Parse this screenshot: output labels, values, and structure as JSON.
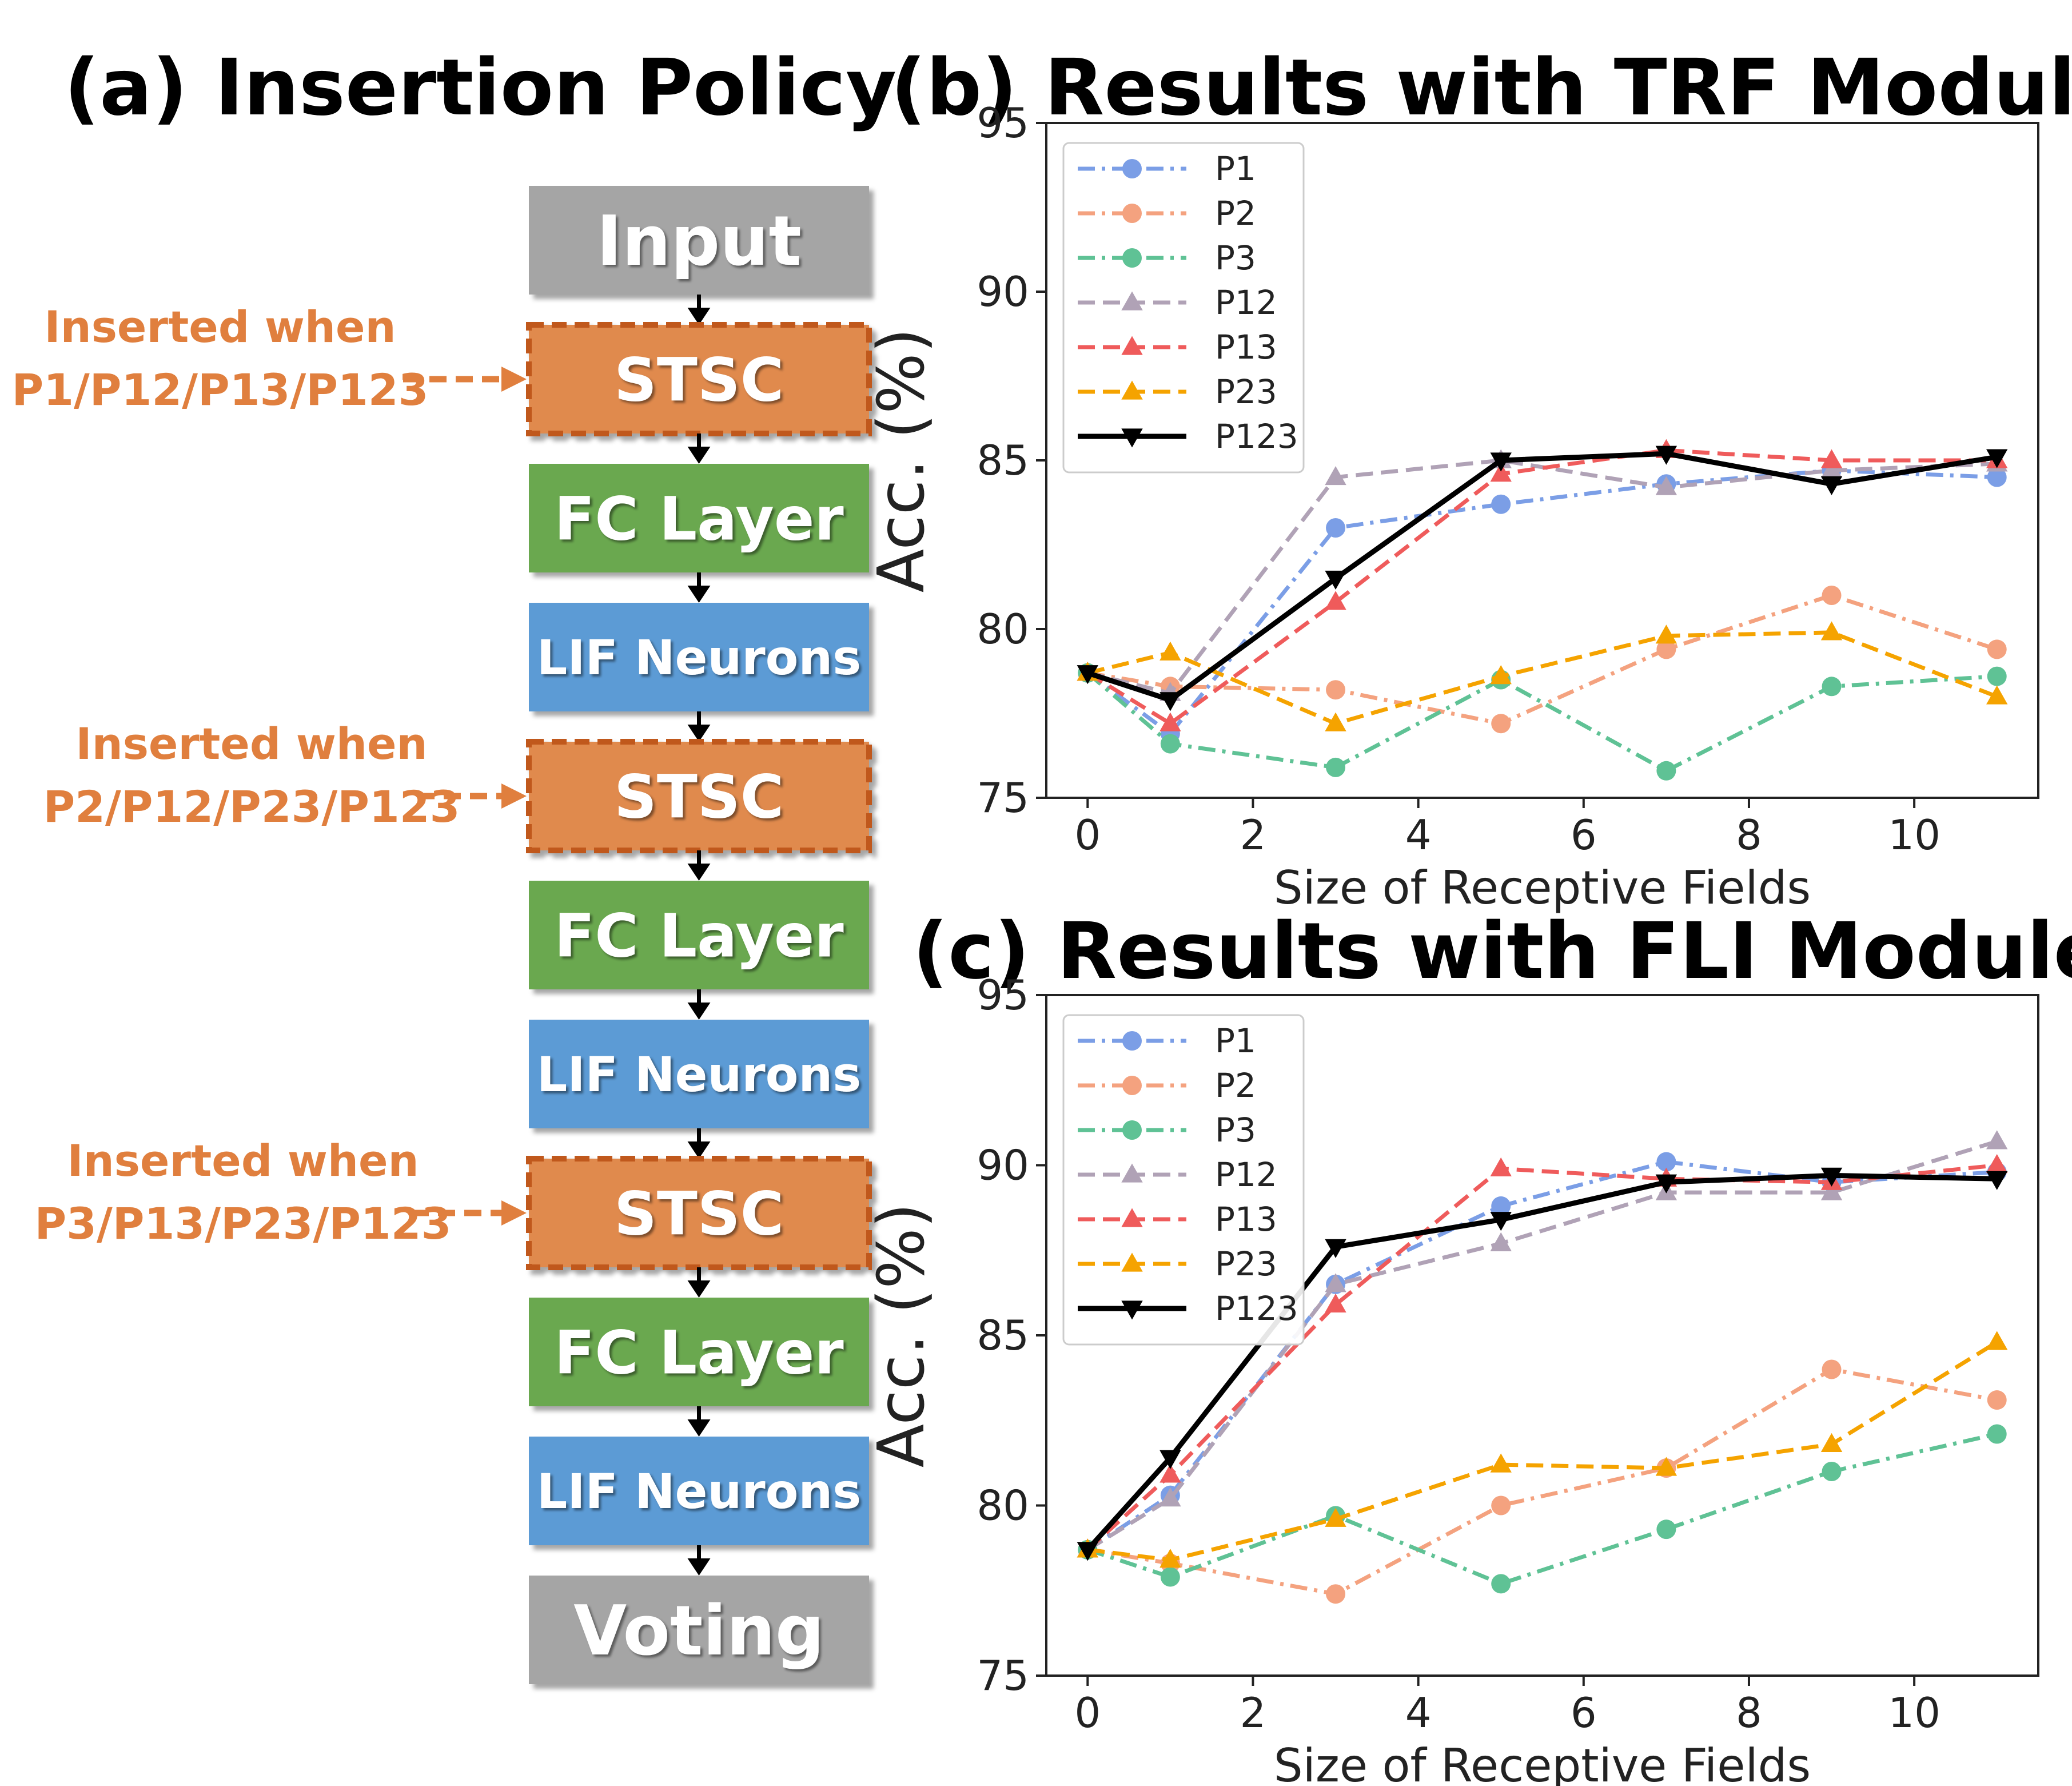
{
  "titles": {
    "a": "(a) Insertion Policy",
    "b": "(b) Results with TRF Module",
    "c": "(c) Results with FLI Module"
  },
  "flow": {
    "blocks": [
      {
        "label": "Input",
        "kind": "gray"
      },
      {
        "label": "STSC",
        "kind": "orange"
      },
      {
        "label": "FC Layer",
        "kind": "green"
      },
      {
        "label": "LIF Neurons",
        "kind": "blue"
      },
      {
        "label": "STSC",
        "kind": "orange"
      },
      {
        "label": "FC Layer",
        "kind": "green"
      },
      {
        "label": "LIF Neurons",
        "kind": "blue"
      },
      {
        "label": "STSC",
        "kind": "orange"
      },
      {
        "label": "FC Layer",
        "kind": "green"
      },
      {
        "label": "LIF Neurons",
        "kind": "blue"
      },
      {
        "label": "Voting",
        "kind": "gray"
      }
    ],
    "notes": [
      {
        "line1": "Inserted when",
        "line2": "P1/P12/P13/P123"
      },
      {
        "line1": "Inserted when",
        "line2": "P2/P12/P23/P123"
      },
      {
        "line1": "Inserted when",
        "line2": "P3/P13/P23/P123"
      }
    ],
    "colors": {
      "gray": "#a5a5a5",
      "orange": "#e08a4e",
      "orange_border": "#c0591c",
      "green": "#6aa84f",
      "blue": "#5b9bd5",
      "note": "#e07f3e"
    }
  },
  "chart_data": [
    {
      "type": "line",
      "title": "(b) Results with TRF Module",
      "xlabel": "Size of Receptive Fields",
      "ylabel": "Acc. (%)",
      "xlim": [
        -0.5,
        11.5
      ],
      "ylim": [
        75,
        95
      ],
      "xticks": [
        0,
        2,
        4,
        6,
        8,
        10
      ],
      "yticks": [
        75,
        80,
        85,
        90,
        95
      ],
      "x": [
        0,
        1,
        3,
        5,
        7,
        9,
        11
      ],
      "series": [
        {
          "name": "P1",
          "color": "#7b9ee6",
          "dash": "dashdot",
          "marker": "circle",
          "values": [
            78.7,
            76.9,
            83.0,
            83.7,
            84.3,
            84.7,
            84.5
          ]
        },
        {
          "name": "P2",
          "color": "#f4a27f",
          "dash": "dashdot",
          "marker": "circle",
          "values": [
            78.7,
            78.3,
            78.2,
            77.2,
            79.4,
            81.0,
            79.4
          ]
        },
        {
          "name": "P3",
          "color": "#5fc295",
          "dash": "dashdot",
          "marker": "circle",
          "values": [
            78.7,
            76.6,
            75.9,
            78.5,
            75.8,
            78.3,
            78.6
          ]
        },
        {
          "name": "P12",
          "color": "#b0a2b6",
          "dash": "dashed",
          "marker": "triangle-up",
          "values": [
            78.7,
            78.1,
            84.5,
            85.0,
            84.2,
            84.7,
            84.9
          ]
        },
        {
          "name": "P13",
          "color": "#ef5b5b",
          "dash": "dashed",
          "marker": "triangle-up",
          "values": [
            78.7,
            77.2,
            80.8,
            84.6,
            85.3,
            85.0,
            85.0
          ]
        },
        {
          "name": "P23",
          "color": "#f5a300",
          "dash": "dashed",
          "marker": "triangle-up",
          "values": [
            78.7,
            79.3,
            77.2,
            78.6,
            79.8,
            79.9,
            78.0
          ]
        },
        {
          "name": "P123",
          "color": "#000000",
          "dash": "solid",
          "marker": "triangle-down",
          "values": [
            78.7,
            77.9,
            81.5,
            85.0,
            85.2,
            84.3,
            85.1
          ]
        }
      ]
    },
    {
      "type": "line",
      "title": "(c) Results with FLI Module",
      "xlabel": "Size of Receptive Fields",
      "ylabel": "Acc. (%)",
      "xlim": [
        -0.5,
        11.5
      ],
      "ylim": [
        75,
        95
      ],
      "xticks": [
        0,
        2,
        4,
        6,
        8,
        10
      ],
      "yticks": [
        75,
        80,
        85,
        90,
        95
      ],
      "x": [
        0,
        1,
        3,
        5,
        7,
        9,
        11
      ],
      "series": [
        {
          "name": "P1",
          "color": "#7b9ee6",
          "dash": "dashdot",
          "marker": "circle",
          "values": [
            78.7,
            80.3,
            86.5,
            88.8,
            90.1,
            89.5,
            89.8
          ]
        },
        {
          "name": "P2",
          "color": "#f4a27f",
          "dash": "dashdot",
          "marker": "circle",
          "values": [
            78.7,
            78.3,
            77.4,
            80.0,
            81.1,
            84.0,
            83.1
          ]
        },
        {
          "name": "P3",
          "color": "#5fc295",
          "dash": "dashdot",
          "marker": "circle",
          "values": [
            78.7,
            77.9,
            79.7,
            77.7,
            79.3,
            81.0,
            82.1
          ]
        },
        {
          "name": "P12",
          "color": "#b0a2b6",
          "dash": "dashed",
          "marker": "triangle-up",
          "values": [
            78.7,
            80.2,
            86.5,
            87.7,
            89.2,
            89.2,
            90.7
          ]
        },
        {
          "name": "P13",
          "color": "#ef5b5b",
          "dash": "dashed",
          "marker": "triangle-up",
          "values": [
            78.7,
            80.9,
            85.9,
            89.9,
            89.6,
            89.5,
            90.0
          ]
        },
        {
          "name": "P23",
          "color": "#f5a300",
          "dash": "dashed",
          "marker": "triangle-up",
          "values": [
            78.7,
            78.4,
            79.6,
            81.2,
            81.1,
            81.8,
            84.8
          ]
        },
        {
          "name": "P123",
          "color": "#000000",
          "dash": "solid",
          "marker": "triangle-down",
          "values": [
            78.7,
            81.4,
            87.6,
            88.4,
            89.5,
            89.7,
            89.6
          ]
        }
      ]
    }
  ]
}
